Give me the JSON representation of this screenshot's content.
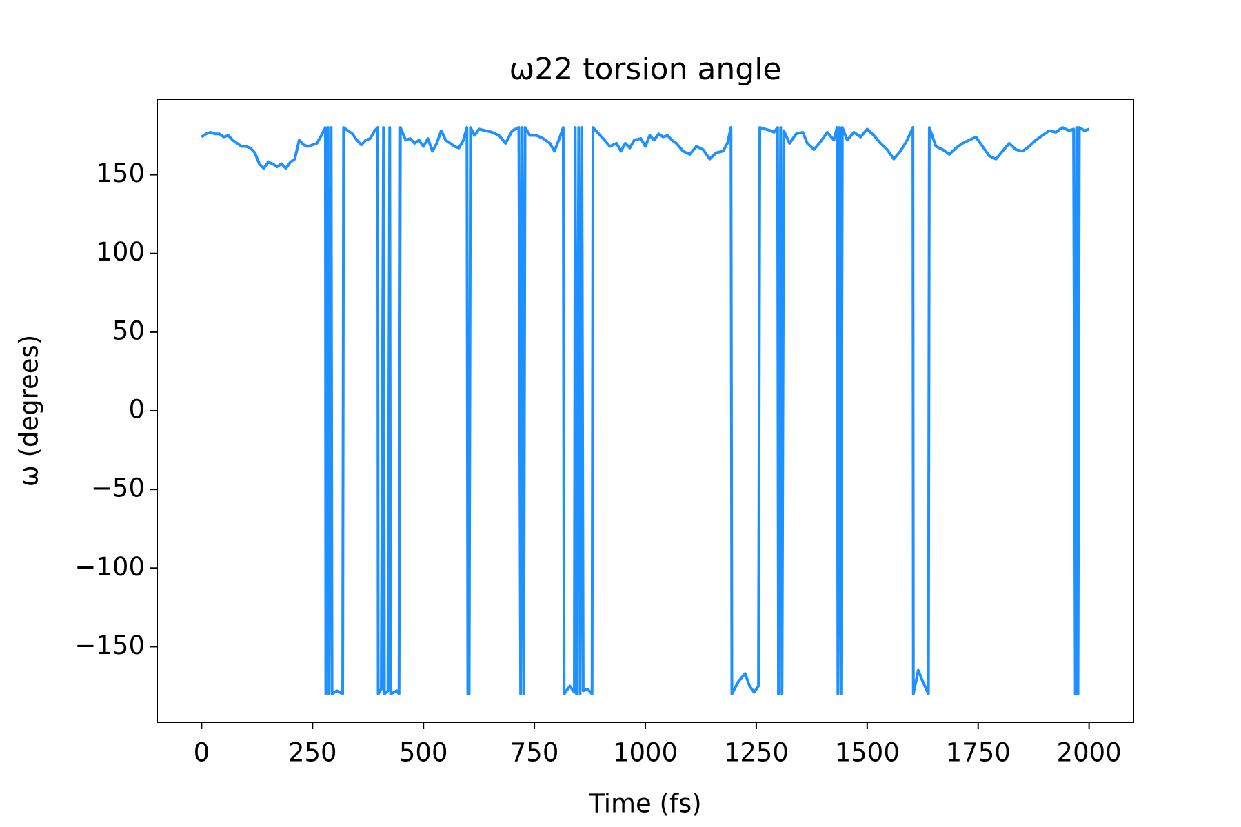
{
  "chart_data": {
    "type": "line",
    "title": "ω22 torsion angle",
    "xlabel": "Time (fs)",
    "ylabel": "ω (degrees)",
    "color": "#1e90ff",
    "x": [
      0,
      10,
      20,
      30,
      40,
      50,
      60,
      70,
      80,
      90,
      100,
      110,
      120,
      130,
      140,
      150,
      160,
      170,
      180,
      190,
      200,
      210,
      220,
      230,
      240,
      250,
      260,
      270,
      279,
      280,
      285,
      287,
      292,
      294,
      305,
      318,
      320,
      330,
      340,
      350,
      360,
      370,
      380,
      390,
      397,
      398,
      405,
      410,
      412,
      420,
      424,
      426,
      440,
      445,
      448,
      460,
      470,
      480,
      490,
      500,
      510,
      520,
      530,
      540,
      550,
      560,
      570,
      580,
      590,
      598,
      600,
      603,
      606,
      615,
      625,
      640,
      655,
      670,
      685,
      700,
      715,
      719,
      722,
      726,
      729,
      740,
      755,
      770,
      785,
      795,
      805,
      815,
      817,
      830,
      840,
      842,
      845,
      850,
      853,
      857,
      860,
      870,
      880,
      882,
      895,
      905,
      920,
      935,
      945,
      955,
      965,
      975,
      990,
      1000,
      1010,
      1020,
      1030,
      1040,
      1050,
      1060,
      1070,
      1085,
      1100,
      1115,
      1130,
      1145,
      1160,
      1175,
      1185,
      1193,
      1195,
      1210,
      1225,
      1235,
      1245,
      1255,
      1258,
      1270,
      1283,
      1290,
      1298,
      1300,
      1305,
      1308,
      1312,
      1325,
      1340,
      1355,
      1365,
      1380,
      1395,
      1410,
      1425,
      1432,
      1434,
      1438,
      1441,
      1444,
      1455,
      1470,
      1485,
      1500,
      1515,
      1530,
      1545,
      1560,
      1575,
      1590,
      1603,
      1604,
      1615,
      1625,
      1638,
      1640,
      1655,
      1670,
      1685,
      1700,
      1715,
      1730,
      1745,
      1760,
      1775,
      1790,
      1805,
      1820,
      1835,
      1850,
      1865,
      1880,
      1895,
      1910,
      1925,
      1940,
      1955,
      1965,
      1969,
      1972,
      1975,
      1978,
      1990,
      2000
    ],
    "values": [
      174,
      176,
      177,
      176,
      176,
      174,
      175,
      172,
      170,
      168,
      168,
      167,
      164,
      157,
      154,
      158,
      157,
      155,
      157,
      154,
      158,
      160,
      172,
      169,
      168,
      169,
      170,
      175,
      180,
      -180,
      180,
      -180,
      180,
      -180,
      -178,
      -180,
      180,
      178,
      176,
      172,
      169,
      172,
      173,
      178,
      180,
      -180,
      -177,
      180,
      -180,
      -178,
      180,
      -180,
      -178,
      -180,
      180,
      172,
      173,
      170,
      172,
      168,
      173,
      165,
      170,
      178,
      172,
      170,
      168,
      167,
      172,
      180,
      -180,
      -180,
      180,
      175,
      179,
      178,
      177,
      175,
      170,
      178,
      180,
      -180,
      180,
      -180,
      180,
      175,
      175,
      173,
      170,
      165,
      172,
      180,
      -180,
      -175,
      -179,
      180,
      -180,
      180,
      -180,
      180,
      -178,
      -177,
      -180,
      180,
      176,
      173,
      168,
      170,
      165,
      170,
      167,
      172,
      173,
      168,
      175,
      172,
      176,
      174,
      175,
      172,
      170,
      165,
      163,
      168,
      166,
      160,
      164,
      165,
      170,
      180,
      -180,
      -172,
      -167,
      -175,
      -179,
      -175,
      180,
      179,
      178,
      177,
      180,
      -180,
      180,
      -180,
      178,
      170,
      176,
      177,
      170,
      166,
      171,
      177,
      172,
      180,
      -180,
      180,
      -180,
      180,
      172,
      177,
      174,
      179,
      175,
      170,
      166,
      160,
      165,
      172,
      180,
      -180,
      -165,
      -172,
      -180,
      180,
      168,
      166,
      163,
      167,
      170,
      172,
      174,
      168,
      162,
      160,
      165,
      170,
      166,
      165,
      168,
      172,
      175,
      178,
      177,
      180,
      178,
      179,
      -180,
      180,
      -180,
      180,
      178,
      179
    ],
    "xlim": [
      -100,
      2100
    ],
    "ylim": [
      -198,
      198
    ],
    "xticks": [
      0,
      250,
      500,
      750,
      1000,
      1250,
      1500,
      1750,
      2000
    ],
    "yticks": [
      {
        "value": -150,
        "label": "−150"
      },
      {
        "value": -100,
        "label": "−100"
      },
      {
        "value": -50,
        "label": "−50"
      },
      0,
      50,
      100,
      150
    ]
  }
}
